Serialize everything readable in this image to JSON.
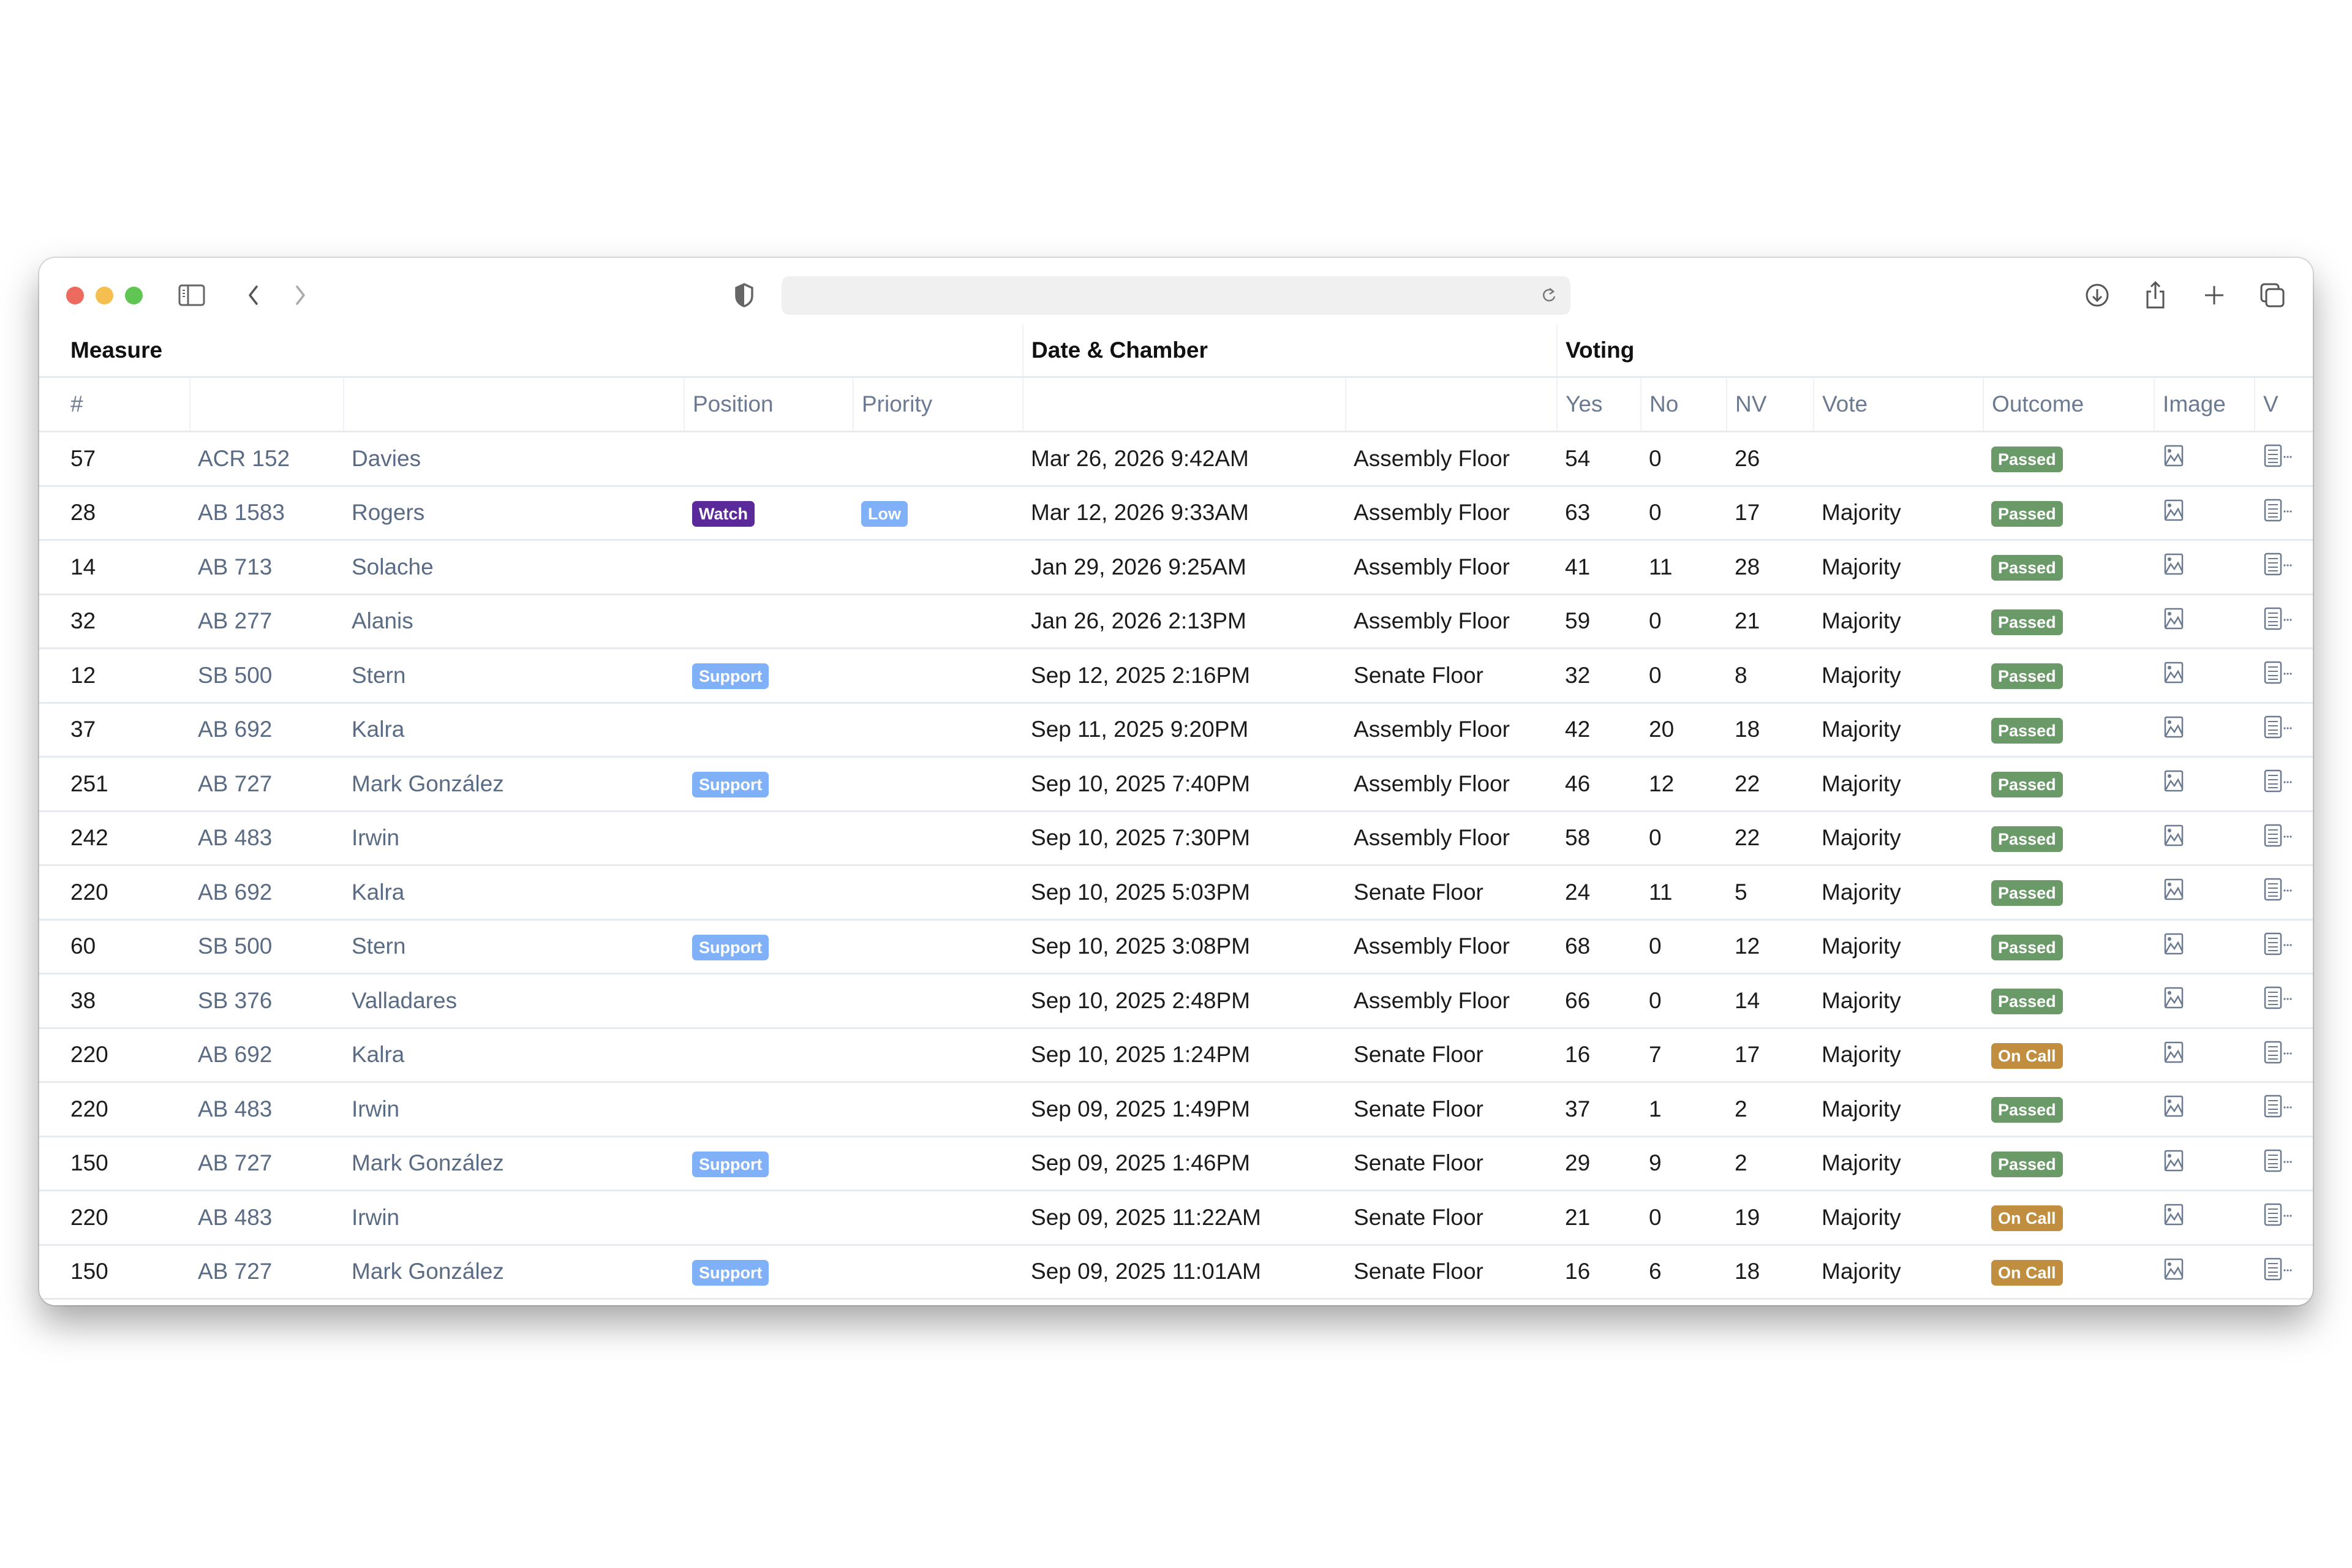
{
  "browser": {
    "address": "",
    "icons": [
      "sidebar-icon",
      "back-icon",
      "forward-icon",
      "shield-icon",
      "reload-icon",
      "download-icon",
      "share-icon",
      "new-tab-icon",
      "tabs-overview-icon"
    ]
  },
  "table": {
    "groups": {
      "measure": "Measure",
      "date_chamber": "Date & Chamber",
      "voting": "Voting"
    },
    "columns": {
      "num": "#",
      "bill": "",
      "author": "",
      "position": "Position",
      "priority": "Priority",
      "date": "",
      "chamber": "",
      "yes": "Yes",
      "no": "No",
      "nv": "NV",
      "vote": "Vote",
      "outcome": "Outcome",
      "image": "Image",
      "v": "V"
    },
    "badge_colors": {
      "Watch": "#5b2a9a",
      "Low": "#80b1f8",
      "Support": "#80b1f8",
      "Passed": "#6a9a68",
      "On Call": "#c08e3e"
    },
    "rows": [
      {
        "num": "57",
        "bill": "ACR 152",
        "author": "Davies",
        "position": "",
        "priority": "",
        "date": "Mar 26, 2026 9:42AM",
        "chamber": "Assembly Floor",
        "yes": "54",
        "no": "0",
        "nv": "26",
        "vote": "",
        "outcome": "Passed"
      },
      {
        "num": "28",
        "bill": "AB 1583",
        "author": "Rogers",
        "position": "Watch",
        "priority": "Low",
        "date": "Mar 12, 2026 9:33AM",
        "chamber": "Assembly Floor",
        "yes": "63",
        "no": "0",
        "nv": "17",
        "vote": "Majority",
        "outcome": "Passed"
      },
      {
        "num": "14",
        "bill": "AB 713",
        "author": "Solache",
        "position": "",
        "priority": "",
        "date": "Jan 29, 2026 9:25AM",
        "chamber": "Assembly Floor",
        "yes": "41",
        "no": "11",
        "nv": "28",
        "vote": "Majority",
        "outcome": "Passed"
      },
      {
        "num": "32",
        "bill": "AB 277",
        "author": "Alanis",
        "position": "",
        "priority": "",
        "date": "Jan 26, 2026 2:13PM",
        "chamber": "Assembly Floor",
        "yes": "59",
        "no": "0",
        "nv": "21",
        "vote": "Majority",
        "outcome": "Passed"
      },
      {
        "num": "12",
        "bill": "SB 500",
        "author": "Stern",
        "position": "Support",
        "priority": "",
        "date": "Sep 12, 2025 2:16PM",
        "chamber": "Senate Floor",
        "yes": "32",
        "no": "0",
        "nv": "8",
        "vote": "Majority",
        "outcome": "Passed"
      },
      {
        "num": "37",
        "bill": "AB 692",
        "author": "Kalra",
        "position": "",
        "priority": "",
        "date": "Sep 11, 2025 9:20PM",
        "chamber": "Assembly Floor",
        "yes": "42",
        "no": "20",
        "nv": "18",
        "vote": "Majority",
        "outcome": "Passed"
      },
      {
        "num": "251",
        "bill": "AB 727",
        "author": "Mark González",
        "position": "Support",
        "priority": "",
        "date": "Sep 10, 2025 7:40PM",
        "chamber": "Assembly Floor",
        "yes": "46",
        "no": "12",
        "nv": "22",
        "vote": "Majority",
        "outcome": "Passed"
      },
      {
        "num": "242",
        "bill": "AB 483",
        "author": "Irwin",
        "position": "",
        "priority": "",
        "date": "Sep 10, 2025 7:30PM",
        "chamber": "Assembly Floor",
        "yes": "58",
        "no": "0",
        "nv": "22",
        "vote": "Majority",
        "outcome": "Passed"
      },
      {
        "num": "220",
        "bill": "AB 692",
        "author": "Kalra",
        "position": "",
        "priority": "",
        "date": "Sep 10, 2025 5:03PM",
        "chamber": "Senate Floor",
        "yes": "24",
        "no": "11",
        "nv": "5",
        "vote": "Majority",
        "outcome": "Passed"
      },
      {
        "num": "60",
        "bill": "SB 500",
        "author": "Stern",
        "position": "Support",
        "priority": "",
        "date": "Sep 10, 2025 3:08PM",
        "chamber": "Assembly Floor",
        "yes": "68",
        "no": "0",
        "nv": "12",
        "vote": "Majority",
        "outcome": "Passed"
      },
      {
        "num": "38",
        "bill": "SB 376",
        "author": "Valladares",
        "position": "",
        "priority": "",
        "date": "Sep 10, 2025 2:48PM",
        "chamber": "Assembly Floor",
        "yes": "66",
        "no": "0",
        "nv": "14",
        "vote": "Majority",
        "outcome": "Passed"
      },
      {
        "num": "220",
        "bill": "AB 692",
        "author": "Kalra",
        "position": "",
        "priority": "",
        "date": "Sep 10, 2025 1:24PM",
        "chamber": "Senate Floor",
        "yes": "16",
        "no": "7",
        "nv": "17",
        "vote": "Majority",
        "outcome": "On Call"
      },
      {
        "num": "220",
        "bill": "AB 483",
        "author": "Irwin",
        "position": "",
        "priority": "",
        "date": "Sep 09, 2025 1:49PM",
        "chamber": "Senate Floor",
        "yes": "37",
        "no": "1",
        "nv": "2",
        "vote": "Majority",
        "outcome": "Passed"
      },
      {
        "num": "150",
        "bill": "AB 727",
        "author": "Mark González",
        "position": "Support",
        "priority": "",
        "date": "Sep 09, 2025 1:46PM",
        "chamber": "Senate Floor",
        "yes": "29",
        "no": "9",
        "nv": "2",
        "vote": "Majority",
        "outcome": "Passed"
      },
      {
        "num": "220",
        "bill": "AB 483",
        "author": "Irwin",
        "position": "",
        "priority": "",
        "date": "Sep 09, 2025 11:22AM",
        "chamber": "Senate Floor",
        "yes": "21",
        "no": "0",
        "nv": "19",
        "vote": "Majority",
        "outcome": "On Call"
      },
      {
        "num": "150",
        "bill": "AB 727",
        "author": "Mark González",
        "position": "Support",
        "priority": "",
        "date": "Sep 09, 2025 11:01AM",
        "chamber": "Senate Floor",
        "yes": "16",
        "no": "6",
        "nv": "18",
        "vote": "Majority",
        "outcome": "On Call"
      }
    ]
  }
}
